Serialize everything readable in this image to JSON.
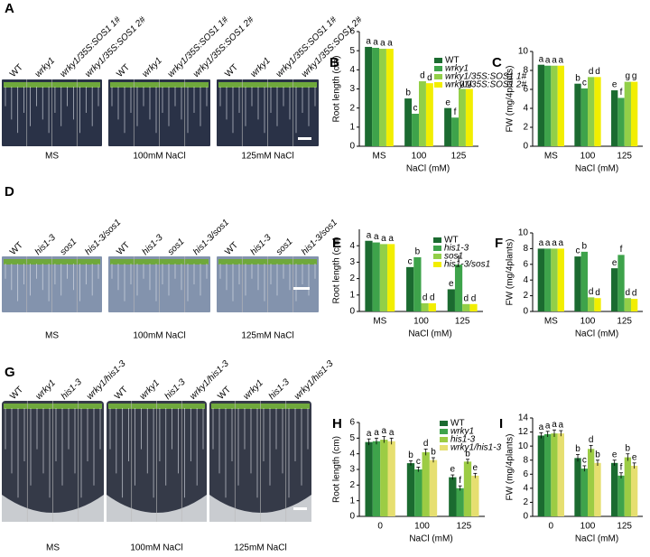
{
  "photo_panels": [
    {
      "letter": "A",
      "genotypes": [
        "WT",
        "wrky1",
        "wrky1/35S:SOS1 1#",
        "wrky1/35S:SOS1 2#"
      ],
      "conditions": [
        "MS",
        "100mM NaCl",
        "125mM NaCl"
      ]
    },
    {
      "letter": "D",
      "genotypes": [
        "WT",
        "his1-3",
        "sos1",
        "his1-3/sos1"
      ],
      "conditions": [
        "MS",
        "100mM NaCl",
        "125mM NaCl"
      ]
    },
    {
      "letter": "G",
      "genotypes": [
        "WT",
        "wrky1",
        "his1-3",
        "wrky1/his1-3"
      ],
      "conditions": [
        "MS",
        "100mM NaCl",
        "125mM NaCl"
      ]
    }
  ],
  "chart_data": [
    {
      "type": "bar",
      "letter": "B",
      "categories": [
        "MS",
        "100",
        "125"
      ],
      "xlabel": "NaCl (mM)",
      "ylabel": "Root length (cm)",
      "ylim": [
        0,
        6
      ],
      "yticks": [
        0,
        1,
        2,
        3,
        4,
        5,
        6
      ],
      "legend": "upper right",
      "series": [
        {
          "name": "WT",
          "color": "#1b6b30",
          "values": [
            5.2,
            2.5,
            2.0
          ],
          "letters": [
            "a",
            "b",
            "e"
          ]
        },
        {
          "name": "wrky1",
          "color": "#3ea34b",
          "values": [
            5.15,
            1.7,
            1.5
          ],
          "letters": [
            "a",
            "c",
            "f"
          ]
        },
        {
          "name": "wrky1/35S:SOS1 1#",
          "color": "#92cf48",
          "values": [
            5.1,
            3.4,
            3.0
          ],
          "letters": [
            "a",
            "d",
            "g"
          ]
        },
        {
          "name": "wrky1/35S:SOS1 2#",
          "color": "#f2ee00",
          "values": [
            5.1,
            3.3,
            3.0
          ],
          "letters": [
            "a",
            "d",
            "g"
          ]
        }
      ]
    },
    {
      "type": "bar",
      "letter": "C",
      "categories": [
        "MS",
        "100",
        "125"
      ],
      "xlabel": "NaCl (mM)",
      "ylabel": "FW (mg/4plants)",
      "ylim": [
        0,
        10
      ],
      "yticks": [
        0,
        2,
        4,
        6,
        8,
        10
      ],
      "series": [
        {
          "color": "#1b6b30",
          "values": [
            8.6,
            6.6,
            5.9
          ],
          "letters": [
            "a",
            "b",
            "e"
          ]
        },
        {
          "color": "#3ea34b",
          "values": [
            8.5,
            6.1,
            5.1
          ],
          "letters": [
            "a",
            "c",
            "f"
          ]
        },
        {
          "color": "#92cf48",
          "values": [
            8.5,
            7.3,
            6.8
          ],
          "letters": [
            "a",
            "d",
            "g"
          ]
        },
        {
          "color": "#f2ee00",
          "values": [
            8.5,
            7.3,
            6.8
          ],
          "letters": [
            "a",
            "d",
            "g"
          ]
        }
      ]
    },
    {
      "type": "bar",
      "letter": "E",
      "categories": [
        "MS",
        "100",
        "125"
      ],
      "xlabel": "NaCl (mM)",
      "ylabel": "Root length (cm)",
      "ylim": [
        0,
        5
      ],
      "yticks": [
        0,
        1,
        2,
        3,
        4
      ],
      "legend": "upper right",
      "series": [
        {
          "name": "WT",
          "color": "#1b6b30",
          "values": [
            4.3,
            2.7,
            1.35
          ],
          "letters": [
            "a",
            "c",
            "e"
          ]
        },
        {
          "name": "his1-3",
          "color": "#3ea34b",
          "values": [
            4.2,
            3.3,
            2.85
          ],
          "letters": [
            "a",
            "b",
            "f"
          ]
        },
        {
          "name": "sos1",
          "color": "#92cf48",
          "values": [
            4.1,
            0.5,
            0.45
          ],
          "letters": [
            "a",
            "d",
            "d"
          ]
        },
        {
          "name": "his1-3/sos1",
          "color": "#f2ee00",
          "values": [
            4.1,
            0.5,
            0.45
          ],
          "letters": [
            "a",
            "d",
            "d"
          ]
        }
      ]
    },
    {
      "type": "bar",
      "letter": "F",
      "categories": [
        "MS",
        "100",
        "125"
      ],
      "xlabel": "NaCl (mM)",
      "ylabel": "FW (mg/4plants)",
      "ylim": [
        0,
        10
      ],
      "yticks": [
        0,
        2,
        4,
        6,
        8,
        10
      ],
      "series": [
        {
          "color": "#1b6b30",
          "values": [
            8.0,
            7.0,
            5.5
          ],
          "letters": [
            "a",
            "c",
            "e"
          ]
        },
        {
          "color": "#3ea34b",
          "values": [
            8.0,
            7.6,
            7.2
          ],
          "letters": [
            "a",
            "b",
            "f"
          ]
        },
        {
          "color": "#92cf48",
          "values": [
            8.0,
            1.8,
            1.7
          ],
          "letters": [
            "a",
            "d",
            "d"
          ]
        },
        {
          "color": "#f2ee00",
          "values": [
            8.0,
            1.7,
            1.6
          ],
          "letters": [
            "a",
            "d",
            "d"
          ]
        }
      ]
    },
    {
      "type": "bar",
      "letter": "H",
      "categories": [
        "0",
        "100",
        "125"
      ],
      "xlabel": "NaCl (mM)",
      "ylabel": "Root length (cm)",
      "ylim": [
        0,
        6
      ],
      "yticks": [
        0,
        1,
        2,
        3,
        4,
        5,
        6
      ],
      "legend": "upper right",
      "series": [
        {
          "name": "WT",
          "color": "#1b6b30",
          "values": [
            4.75,
            3.4,
            2.5
          ],
          "errors": [
            0.2,
            0.15,
            0.15
          ],
          "letters": [
            "a",
            "b",
            "e"
          ]
        },
        {
          "name": "wrky1",
          "color": "#3ea34b",
          "values": [
            4.8,
            3.0,
            1.8
          ],
          "errors": [
            0.2,
            0.15,
            0.15
          ],
          "letters": [
            "a",
            "c",
            "f"
          ]
        },
        {
          "name": "his1-3",
          "color": "#9ccc44",
          "values": [
            4.9,
            4.1,
            3.5
          ],
          "errors": [
            0.2,
            0.2,
            0.15
          ],
          "letters": [
            "a",
            "d",
            "b"
          ]
        },
        {
          "name": "wrky1/his1-3",
          "color": "#e6df70",
          "values": [
            4.8,
            3.6,
            2.6
          ],
          "errors": [
            0.2,
            0.15,
            0.15
          ],
          "letters": [
            "a",
            "b",
            "e"
          ]
        }
      ]
    },
    {
      "type": "bar",
      "letter": "I",
      "categories": [
        "0",
        "100",
        "125"
      ],
      "xlabel": "NaCl (mM)",
      "ylabel": "FW (mg/4plants)",
      "ylim": [
        0,
        14
      ],
      "yticks": [
        0,
        2,
        4,
        6,
        8,
        10,
        12,
        14
      ],
      "series": [
        {
          "color": "#1b6b30",
          "values": [
            11.5,
            8.3,
            7.6
          ],
          "errors": [
            0.4,
            0.5,
            0.4
          ],
          "letters": [
            "a",
            "b",
            "e"
          ]
        },
        {
          "color": "#3ea34b",
          "values": [
            11.7,
            6.8,
            5.8
          ],
          "errors": [
            0.4,
            0.4,
            0.4
          ],
          "letters": [
            "a",
            "c",
            "f"
          ]
        },
        {
          "color": "#9ccc44",
          "values": [
            11.8,
            9.6,
            8.4
          ],
          "errors": [
            0.5,
            0.5,
            0.5
          ],
          "letters": [
            "a",
            "d",
            "b"
          ]
        },
        {
          "color": "#e6df70",
          "values": [
            11.8,
            7.6,
            7.2
          ],
          "errors": [
            0.4,
            0.4,
            0.4
          ],
          "letters": [
            "a",
            "b",
            "e"
          ]
        }
      ]
    }
  ]
}
